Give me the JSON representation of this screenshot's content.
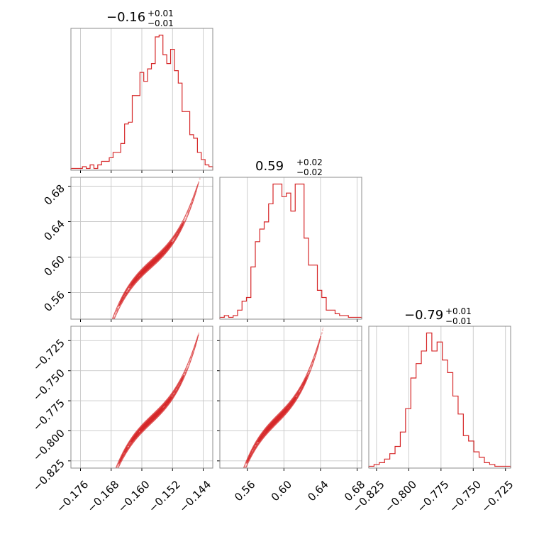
{
  "accent_color": "#d62728",
  "chart_data": {
    "type": "corner",
    "parameters": [
      {
        "title_value": "−0.16",
        "title_plus": "+0.01",
        "title_minus": "−0.01",
        "range": [
          -0.1785,
          -0.1415
        ],
        "ticks": [
          -0.176,
          -0.168,
          -0.16,
          -0.152,
          -0.144
        ],
        "tick_labels": [
          "−0.176",
          "−0.168",
          "−0.160",
          "−0.152",
          "−0.144"
        ],
        "hist_counts": [
          1,
          1,
          1,
          2,
          1,
          3,
          1,
          3,
          5,
          5,
          7,
          10,
          10,
          15,
          26,
          27,
          42,
          42,
          55,
          50,
          57,
          60,
          75,
          76,
          65,
          60,
          68,
          56,
          49,
          33,
          33,
          20,
          18,
          10,
          6,
          3,
          2
        ]
      },
      {
        "title_value": "0.59",
        "title_plus": "+0.02",
        "title_minus": "−0.02",
        "range": [
          0.53,
          0.685
        ],
        "ticks": [
          0.56,
          0.6,
          0.64,
          0.68
        ],
        "tick_labels": [
          "0.56",
          "0.60",
          "0.64",
          "0.68"
        ],
        "y_range": [
          0.53,
          0.69
        ],
        "y_ticks": [
          0.56,
          0.6,
          0.64,
          0.68
        ],
        "hist_counts": [
          1,
          2,
          1,
          2,
          5,
          10,
          12,
          29,
          43,
          50,
          54,
          64,
          75,
          75,
          68,
          70,
          60,
          75,
          75,
          45,
          30,
          30,
          16,
          12,
          5,
          5,
          3,
          2,
          2,
          1,
          1,
          1
        ]
      },
      {
        "title_value": "−0.79",
        "title_plus": "+0.01",
        "title_minus": "−0.01",
        "range": [
          -0.831,
          -0.721
        ],
        "ticks": [
          -0.825,
          -0.8,
          -0.775,
          -0.75,
          -0.725
        ],
        "tick_labels": [
          "−0.825",
          "−0.800",
          "−0.775",
          "−0.750",
          "−0.725"
        ],
        "y_range": [
          -0.831,
          -0.713
        ],
        "y_ticks": [
          -0.825,
          -0.8,
          -0.775,
          -0.75,
          -0.725
        ],
        "hist_counts": [
          1,
          2,
          3,
          5,
          8,
          12,
          20,
          33,
          50,
          58,
          65,
          75,
          65,
          70,
          60,
          53,
          40,
          30,
          18,
          15,
          9,
          6,
          3,
          2,
          1,
          1,
          1
        ]
      }
    ],
    "pairs": [
      {
        "x_param": 0,
        "y_param": 1,
        "slope": 3.95,
        "x_center": -0.1575,
        "y_center": 0.5925,
        "x_span": [
          -0.1735,
          -0.1415
        ]
      },
      {
        "x_param": 0,
        "y_param": 2,
        "slope": 3.05,
        "x_center": -0.1575,
        "y_center": -0.7905,
        "x_span": [
          -0.1735,
          -0.1415
        ]
      },
      {
        "x_param": 1,
        "y_param": 2,
        "slope": 0.77,
        "x_center": 0.5925,
        "y_center": -0.7905,
        "x_span": [
          0.54,
          0.665
        ]
      }
    ],
    "grid": true,
    "legend": "none"
  }
}
